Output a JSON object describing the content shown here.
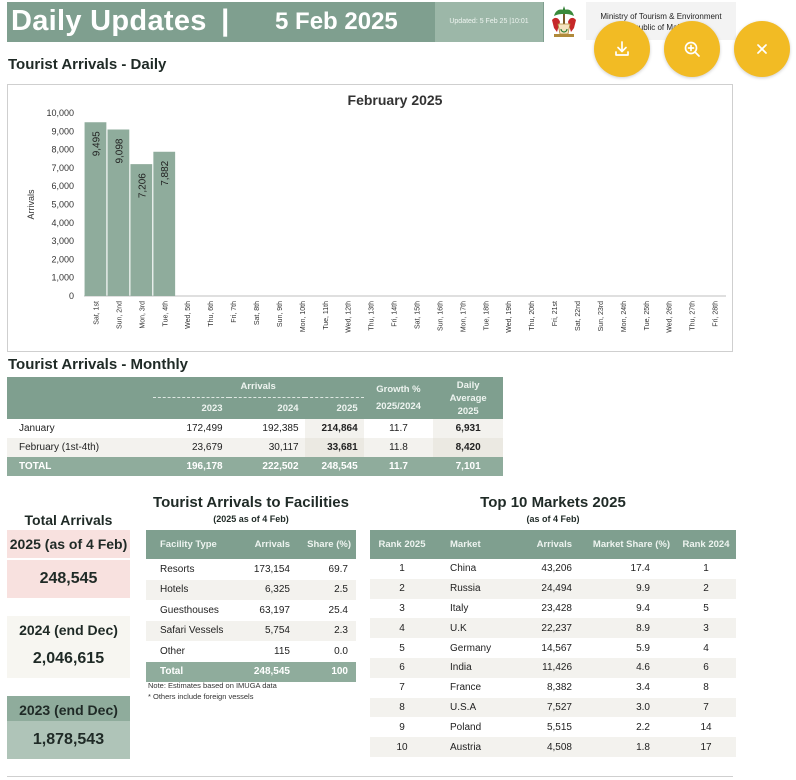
{
  "header": {
    "title": "Daily Updates",
    "separator": "|",
    "date_day": "5",
    "date_rest": "Feb 2025",
    "updated": "Updated: 5 Feb 25 |10:01",
    "ministry_line1": "Ministry of Tourism & Environment",
    "ministry_line2": "Republic of Maldives"
  },
  "colors": {
    "accent": "#7f9f8f",
    "fab": "#f2bb24",
    "pink": "#f8e1df",
    "light": "#f7f6f1",
    "green_light": "#afc4b8"
  },
  "toolbar": {
    "icons": [
      "download-icon",
      "zoom-in-icon",
      "close-icon"
    ]
  },
  "daily": {
    "section_title": "Tourist Arrivals - Daily",
    "chart_data": {
      "type": "bar",
      "title": "February 2025",
      "ylabel": "Arrivals",
      "xlabel": "",
      "ylim": [
        0,
        10000
      ],
      "yticks": [
        "0",
        "1,000",
        "2,000",
        "3,000",
        "4,000",
        "5,000",
        "6,000",
        "7,000",
        "8,000",
        "9,000",
        "10,000"
      ],
      "categories": [
        "Sat, 1st",
        "Sun, 2nd",
        "Mon, 3rd",
        "Tue, 4th",
        "Wed, 5th",
        "Thu, 6th",
        "Fri, 7th",
        "Sat, 8th",
        "Sun, 9th",
        "Mon, 10th",
        "Tue, 11th",
        "Wed, 12th",
        "Thu, 13th",
        "Fri, 14th",
        "Sat, 15th",
        "Sun, 16th",
        "Mon, 17th",
        "Tue, 18th",
        "Wed, 19th",
        "Thu, 20th",
        "Fri, 21st",
        "Sat, 22nd",
        "Sun, 23rd",
        "Mon, 24th",
        "Tue, 25th",
        "Wed, 26th",
        "Thu, 27th",
        "Fri, 28th"
      ],
      "values": [
        9495,
        9098,
        7206,
        7882,
        null,
        null,
        null,
        null,
        null,
        null,
        null,
        null,
        null,
        null,
        null,
        null,
        null,
        null,
        null,
        null,
        null,
        null,
        null,
        null,
        null,
        null,
        null,
        null
      ],
      "labels": [
        "9,495",
        "9,098",
        "7,206",
        "7,882"
      ],
      "grid": false,
      "bar_color": "#8fac9c"
    }
  },
  "monthly": {
    "section_title": "Tourist Arrivals - Monthly",
    "group_arrivals": "Arrivals",
    "col_growth": "Growth %",
    "col_growth_sub": "2025/2024",
    "col_daily": "Daily",
    "col_daily_2": "Average",
    "col_daily_3": "2025",
    "years": [
      "2023",
      "2024",
      "2025"
    ],
    "rows": [
      {
        "month": "January",
        "y2023": "172,499",
        "y2024": "192,385",
        "y2025": "214,864",
        "growth": "11.7",
        "avg": "6,931"
      },
      {
        "month": "February (1st-4th)",
        "y2023": "23,679",
        "y2024": "30,117",
        "y2025": "33,681",
        "growth": "11.8",
        "avg": "8,420"
      }
    ],
    "total": {
      "month": "TOTAL",
      "y2023": "196,178",
      "y2024": "222,502",
      "y2025": "248,545",
      "growth": "11.7",
      "avg": "7,101"
    }
  },
  "totals": {
    "title": "Total Arrivals",
    "items": [
      {
        "label": "2025 (as of 4 Feb)",
        "value": "248,545"
      },
      {
        "label": "2024 (end Dec)",
        "value": "2,046,615"
      },
      {
        "label": "2023 (end Dec)",
        "value": "1,878,543"
      }
    ]
  },
  "facilities": {
    "title": "Tourist Arrivals to Facilities",
    "subtitle": "(2025 as of 4 Feb)",
    "headers": [
      "Facility Type",
      "Arrivals",
      "Share (%)"
    ],
    "rows": [
      {
        "type": "Resorts",
        "arrivals": "173,154",
        "share": "69.7"
      },
      {
        "type": "Hotels",
        "arrivals": "6,325",
        "share": "2.5"
      },
      {
        "type": "Guesthouses",
        "arrivals": "63,197",
        "share": "25.4"
      },
      {
        "type": "Safari Vessels",
        "arrivals": "5,754",
        "share": "2.3"
      },
      {
        "type": "Other",
        "arrivals": "115",
        "share": "0.0"
      }
    ],
    "total": {
      "type": "Total",
      "arrivals": "248,545",
      "share": "100"
    },
    "note1": "Note: Estimates based on IMUGA data",
    "note2": "* Others include foreign vessels"
  },
  "markets": {
    "title": "Top 10 Markets 2025",
    "subtitle": "(as of 4 Feb)",
    "headers": [
      "Rank 2025",
      "Market",
      "Arrivals",
      "Market Share (%)",
      "Rank 2024"
    ],
    "rows": [
      {
        "rank": "1",
        "market": "China",
        "arrivals": "43,206",
        "share": "17.4",
        "prev": "1"
      },
      {
        "rank": "2",
        "market": "Russia",
        "arrivals": "24,494",
        "share": "9.9",
        "prev": "2"
      },
      {
        "rank": "3",
        "market": "Italy",
        "arrivals": "23,428",
        "share": "9.4",
        "prev": "5"
      },
      {
        "rank": "4",
        "market": "U.K",
        "arrivals": "22,237",
        "share": "8.9",
        "prev": "3"
      },
      {
        "rank": "5",
        "market": "Germany",
        "arrivals": "14,567",
        "share": "5.9",
        "prev": "4"
      },
      {
        "rank": "6",
        "market": "India",
        "arrivals": "11,426",
        "share": "4.6",
        "prev": "6"
      },
      {
        "rank": "7",
        "market": "France",
        "arrivals": "8,382",
        "share": "3.4",
        "prev": "8"
      },
      {
        "rank": "8",
        "market": "U.S.A",
        "arrivals": "7,527",
        "share": "3.0",
        "prev": "7"
      },
      {
        "rank": "9",
        "market": "Poland",
        "arrivals": "5,515",
        "share": "2.2",
        "prev": "14"
      },
      {
        "rank": "10",
        "market": "Austria",
        "arrivals": "4,508",
        "share": "1.8",
        "prev": "17"
      }
    ]
  }
}
